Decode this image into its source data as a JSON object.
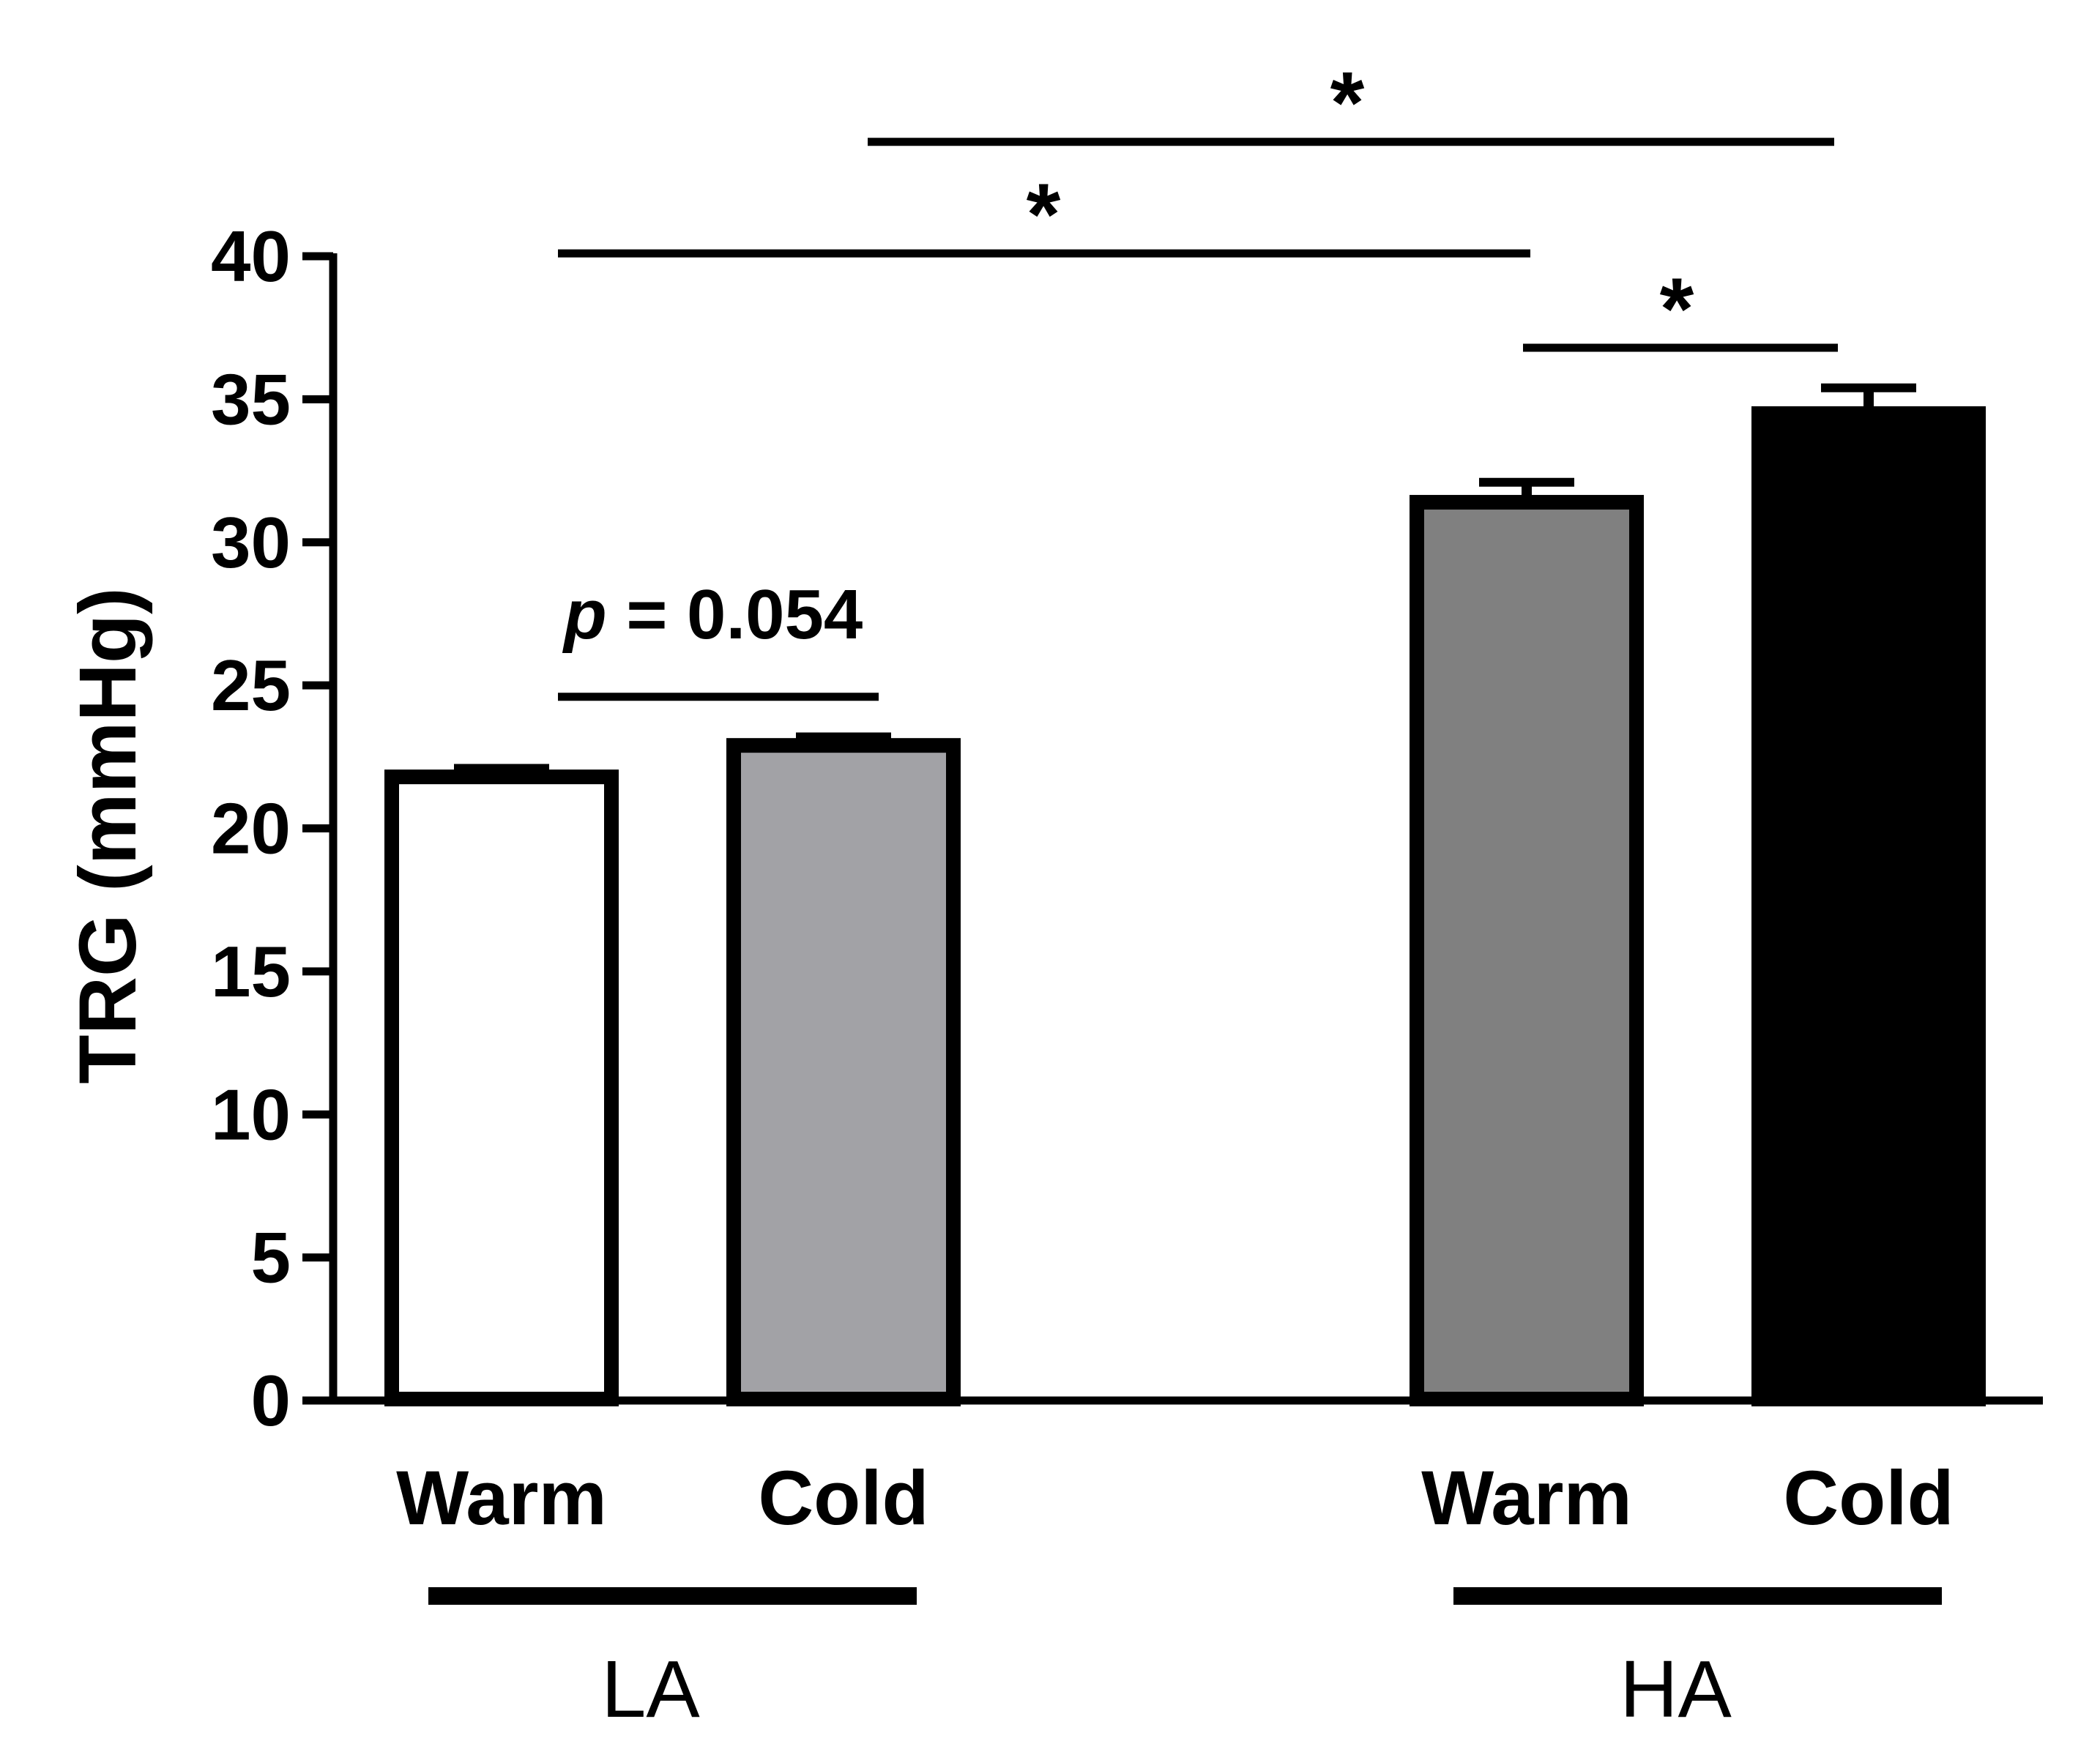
{
  "chart_data": {
    "type": "bar",
    "title": "",
    "xlabel": "",
    "ylabel": "TRG (mmHg)",
    "ylim": [
      0,
      40
    ],
    "yticks": [
      0,
      5,
      10,
      15,
      20,
      25,
      30,
      35,
      40
    ],
    "grid": false,
    "legend": "none",
    "bars": [
      {
        "group": "LA",
        "category": "Warm",
        "value": 21.8,
        "error": 0.3,
        "fill": "#ffffff"
      },
      {
        "group": "LA",
        "category": "Cold",
        "value": 22.9,
        "error": 0.3,
        "fill": "#a2a2a6"
      },
      {
        "group": "HA",
        "category": "Warm",
        "value": 31.4,
        "error": 0.7,
        "fill": "#808080"
      },
      {
        "group": "HA",
        "category": "Cold",
        "value": 34.5,
        "error": 0.9,
        "fill": "#000000"
      }
    ],
    "groups": [
      {
        "label": "LA",
        "bars": [
          0,
          1
        ]
      },
      {
        "label": "HA",
        "bars": [
          2,
          3
        ]
      }
    ],
    "annotations": [
      {
        "from": 1,
        "to": 3,
        "y": 44.0,
        "label": "*",
        "kind": "star"
      },
      {
        "from": 0,
        "to": 2,
        "y": 40.1,
        "label": "*",
        "kind": "star"
      },
      {
        "from": 2,
        "to": 3,
        "y": 36.8,
        "label": "*",
        "kind": "star"
      },
      {
        "from": 0,
        "to": 1,
        "y": 24.6,
        "label": "p = 0.054",
        "label_italic_prefix": "p",
        "label_rest": " = 0.054",
        "kind": "pvalue"
      }
    ]
  },
  "colors": {
    "axis": "#000000",
    "bar_outline": "#000000"
  }
}
